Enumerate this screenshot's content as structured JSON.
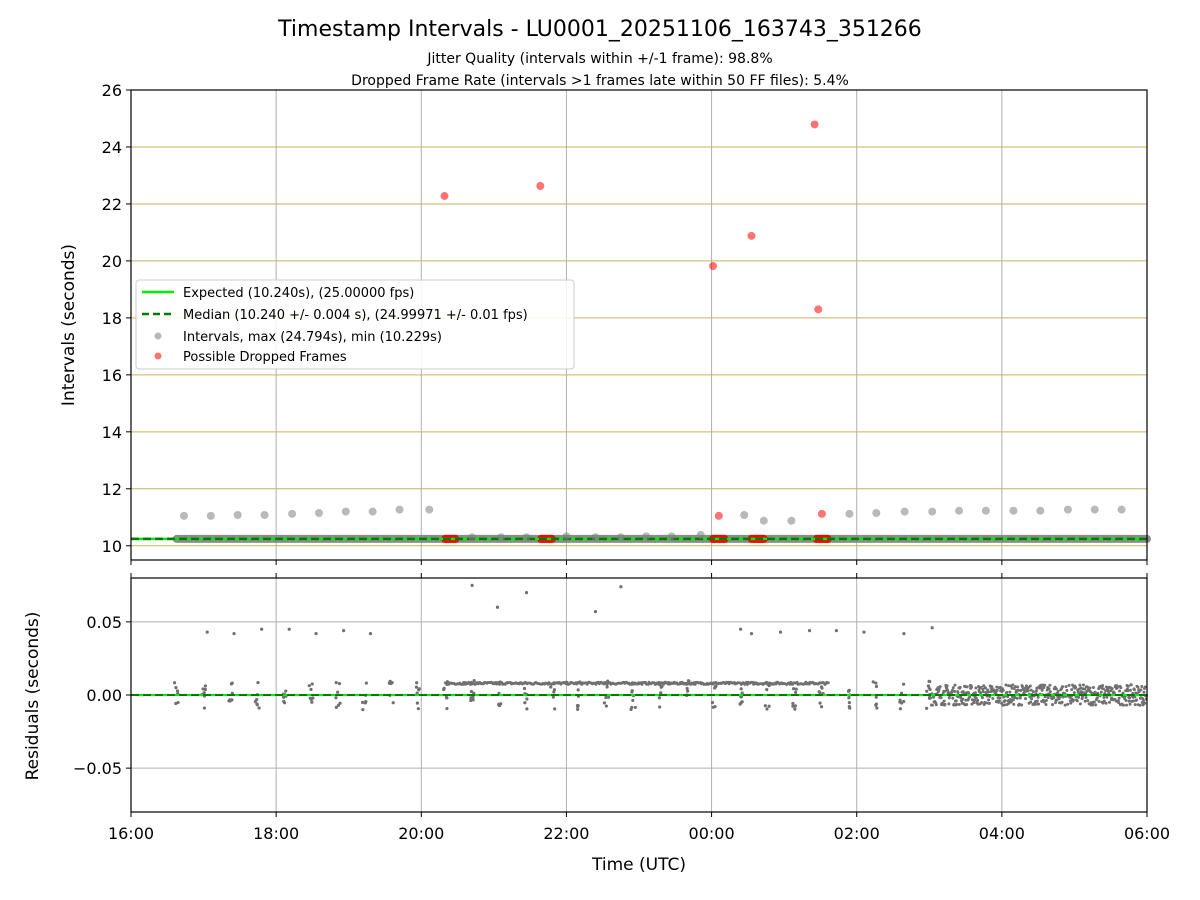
{
  "title": "Timestamp Intervals - LU0001_20251106_163743_351266",
  "subtitle_lines": [
    "Jitter Quality (intervals within +/-1 frame): 98.8%",
    "Dropped Frame Rate (intervals >1 frames late within 50 FF files): 5.4%"
  ],
  "colors": {
    "expected": "#00ee00",
    "median": "#007a00",
    "intervals": "#808080",
    "dropped": "#ff0000",
    "hgrid_top": "#c8b35a",
    "grid": "#b0b0b0",
    "residuals": "#707070"
  },
  "chart_data": [
    {
      "type": "scatter",
      "panel": "top",
      "ylabel": "Intervals (seconds)",
      "ylim": [
        9.5,
        26
      ],
      "yticks": [
        10,
        12,
        14,
        16,
        18,
        20,
        22,
        24,
        26
      ],
      "xlim_hours": [
        16,
        30
      ],
      "xtick_hours": [
        16,
        18,
        20,
        22,
        24,
        26,
        28,
        30
      ],
      "x_unit": "hours since 2025-11-06 00:00 UTC",
      "legend": {
        "placement": "center-left",
        "entries": [
          {
            "label": "Expected (10.240s), (25.00000 fps)",
            "kind": "solid-line",
            "color_key": "expected"
          },
          {
            "label": "Median (10.240 +/- 0.004 s), (24.99971 +/- 0.01 fps)",
            "kind": "dashed-line",
            "color_key": "median"
          },
          {
            "label": "Intervals, max (24.794s), min (10.229s)",
            "kind": "dot",
            "color_key": "intervals"
          },
          {
            "label": "Possible Dropped Frames",
            "kind": "dot",
            "color_key": "dropped"
          }
        ]
      },
      "expected_value": 10.24,
      "median_value": 10.24,
      "baseline_range_hours": [
        16.63,
        30
      ],
      "interval_points": [
        {
          "x": 16.73,
          "y": 11.05
        },
        {
          "x": 17.1,
          "y": 11.05
        },
        {
          "x": 17.47,
          "y": 11.08
        },
        {
          "x": 17.84,
          "y": 11.08
        },
        {
          "x": 18.22,
          "y": 11.12
        },
        {
          "x": 18.59,
          "y": 11.15
        },
        {
          "x": 18.96,
          "y": 11.2
        },
        {
          "x": 19.33,
          "y": 11.2
        },
        {
          "x": 19.7,
          "y": 11.27
        },
        {
          "x": 20.11,
          "y": 11.27
        },
        {
          "x": 20.7,
          "y": 10.3
        },
        {
          "x": 21.1,
          "y": 10.3
        },
        {
          "x": 21.45,
          "y": 10.3
        },
        {
          "x": 22.0,
          "y": 10.33
        },
        {
          "x": 22.4,
          "y": 10.3
        },
        {
          "x": 22.75,
          "y": 10.3
        },
        {
          "x": 23.1,
          "y": 10.33
        },
        {
          "x": 23.45,
          "y": 10.33
        },
        {
          "x": 23.85,
          "y": 10.38
        },
        {
          "x": 24.45,
          "y": 11.08
        },
        {
          "x": 24.72,
          "y": 10.88
        },
        {
          "x": 25.1,
          "y": 10.88
        },
        {
          "x": 25.9,
          "y": 11.12
        },
        {
          "x": 26.27,
          "y": 11.15
        },
        {
          "x": 26.66,
          "y": 11.2
        },
        {
          "x": 27.04,
          "y": 11.2
        },
        {
          "x": 27.41,
          "y": 11.23
        },
        {
          "x": 27.78,
          "y": 11.23
        },
        {
          "x": 28.16,
          "y": 11.23
        },
        {
          "x": 28.53,
          "y": 11.23
        },
        {
          "x": 28.91,
          "y": 11.27
        },
        {
          "x": 29.28,
          "y": 11.27
        },
        {
          "x": 29.65,
          "y": 11.27
        }
      ],
      "dropped_points": [
        {
          "x": 20.32,
          "y": 22.28
        },
        {
          "x": 21.64,
          "y": 22.63
        },
        {
          "x": 24.02,
          "y": 19.82
        },
        {
          "x": 24.1,
          "y": 11.05
        },
        {
          "x": 24.55,
          "y": 20.88
        },
        {
          "x": 25.42,
          "y": 24.79
        },
        {
          "x": 25.47,
          "y": 18.3
        },
        {
          "x": 25.52,
          "y": 11.12
        }
      ],
      "dropped_baseline_clusters_hours": [
        [
          20.33,
          20.47
        ],
        [
          21.65,
          21.8
        ],
        [
          24.02,
          24.18
        ],
        [
          24.55,
          24.72
        ],
        [
          25.45,
          25.6
        ]
      ]
    },
    {
      "type": "scatter",
      "panel": "bottom",
      "ylabel": "Residuals (seconds)",
      "xlabel": "Time (UTC)",
      "ylim": [
        -0.08,
        0.08
      ],
      "yticks": [
        0.05,
        0.0,
        -0.05
      ],
      "ytick_labels": [
        "0.05",
        "0.00",
        "−0.05"
      ],
      "xlim_hours": [
        16,
        30
      ],
      "xtick_hours": [
        16,
        18,
        20,
        22,
        24,
        26,
        28,
        30
      ],
      "xtick_labels": [
        "16:00",
        "18:00",
        "20:00",
        "22:00",
        "00:00",
        "02:00",
        "04:00",
        "06:00"
      ],
      "outlier_points": [
        {
          "x": 17.05,
          "y": 0.043
        },
        {
          "x": 17.42,
          "y": 0.042
        },
        {
          "x": 17.8,
          "y": 0.045
        },
        {
          "x": 18.18,
          "y": 0.045
        },
        {
          "x": 18.55,
          "y": 0.042
        },
        {
          "x": 18.93,
          "y": 0.044
        },
        {
          "x": 19.3,
          "y": 0.042
        },
        {
          "x": 20.7,
          "y": 0.075
        },
        {
          "x": 21.05,
          "y": 0.06
        },
        {
          "x": 21.45,
          "y": 0.07
        },
        {
          "x": 22.4,
          "y": 0.057
        },
        {
          "x": 22.75,
          "y": 0.074
        },
        {
          "x": 24.4,
          "y": 0.045
        },
        {
          "x": 24.55,
          "y": 0.042
        },
        {
          "x": 24.95,
          "y": 0.043
        },
        {
          "x": 25.35,
          "y": 0.044
        },
        {
          "x": 25.72,
          "y": 0.044
        },
        {
          "x": 26.1,
          "y": 0.043
        },
        {
          "x": 26.65,
          "y": 0.042
        },
        {
          "x": 27.04,
          "y": 0.046
        }
      ],
      "plateau_range_hours": [
        20.33,
        25.62
      ],
      "plateau_value": 0.008,
      "noise_band": {
        "range_hours": [
          27.0,
          30.0
        ],
        "amplitude": 0.007
      }
    }
  ]
}
